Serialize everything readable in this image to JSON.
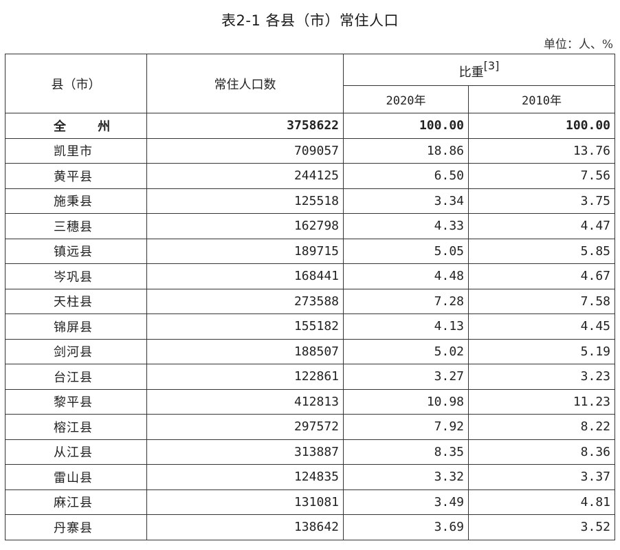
{
  "title": "表2-1 各县（市）常住人口",
  "unit": "单位：人、%",
  "header": {
    "county": "县（市）",
    "population": "常住人口数",
    "share": "比重",
    "share_note": "[3]",
    "year_2020": "2020年",
    "year_2010": "2010年"
  },
  "total": {
    "name": "全  州",
    "population": "3758622",
    "share_2020": "100.00",
    "share_2010": "100.00"
  },
  "rows": [
    {
      "name": "凯里市",
      "population": "709057",
      "share_2020": "18.86",
      "share_2010": "13.76"
    },
    {
      "name": "黄平县",
      "population": "244125",
      "share_2020": "6.50",
      "share_2010": "7.56"
    },
    {
      "name": "施秉县",
      "population": "125518",
      "share_2020": "3.34",
      "share_2010": "3.75"
    },
    {
      "name": "三穗县",
      "population": "162798",
      "share_2020": "4.33",
      "share_2010": "4.47"
    },
    {
      "name": "镇远县",
      "population": "189715",
      "share_2020": "5.05",
      "share_2010": "5.85"
    },
    {
      "name": "岑巩县",
      "population": "168441",
      "share_2020": "4.48",
      "share_2010": "4.67"
    },
    {
      "name": "天柱县",
      "population": "273588",
      "share_2020": "7.28",
      "share_2010": "7.58"
    },
    {
      "name": "锦屏县",
      "population": "155182",
      "share_2020": "4.13",
      "share_2010": "4.45"
    },
    {
      "name": "剑河县",
      "population": "188507",
      "share_2020": "5.02",
      "share_2010": "5.19"
    },
    {
      "name": "台江县",
      "population": "122861",
      "share_2020": "3.27",
      "share_2010": "3.23"
    },
    {
      "name": "黎平县",
      "population": "412813",
      "share_2020": "10.98",
      "share_2010": "11.23"
    },
    {
      "name": "榕江县",
      "population": "297572",
      "share_2020": "7.92",
      "share_2010": "8.22"
    },
    {
      "name": "从江县",
      "population": "313887",
      "share_2020": "8.35",
      "share_2010": "8.36"
    },
    {
      "name": "雷山县",
      "population": "124835",
      "share_2020": "3.32",
      "share_2010": "3.37"
    },
    {
      "name": "麻江县",
      "population": "131081",
      "share_2020": "3.49",
      "share_2010": "4.81"
    },
    {
      "name": "丹寨县",
      "population": "138642",
      "share_2020": "3.69",
      "share_2010": "3.52"
    }
  ]
}
